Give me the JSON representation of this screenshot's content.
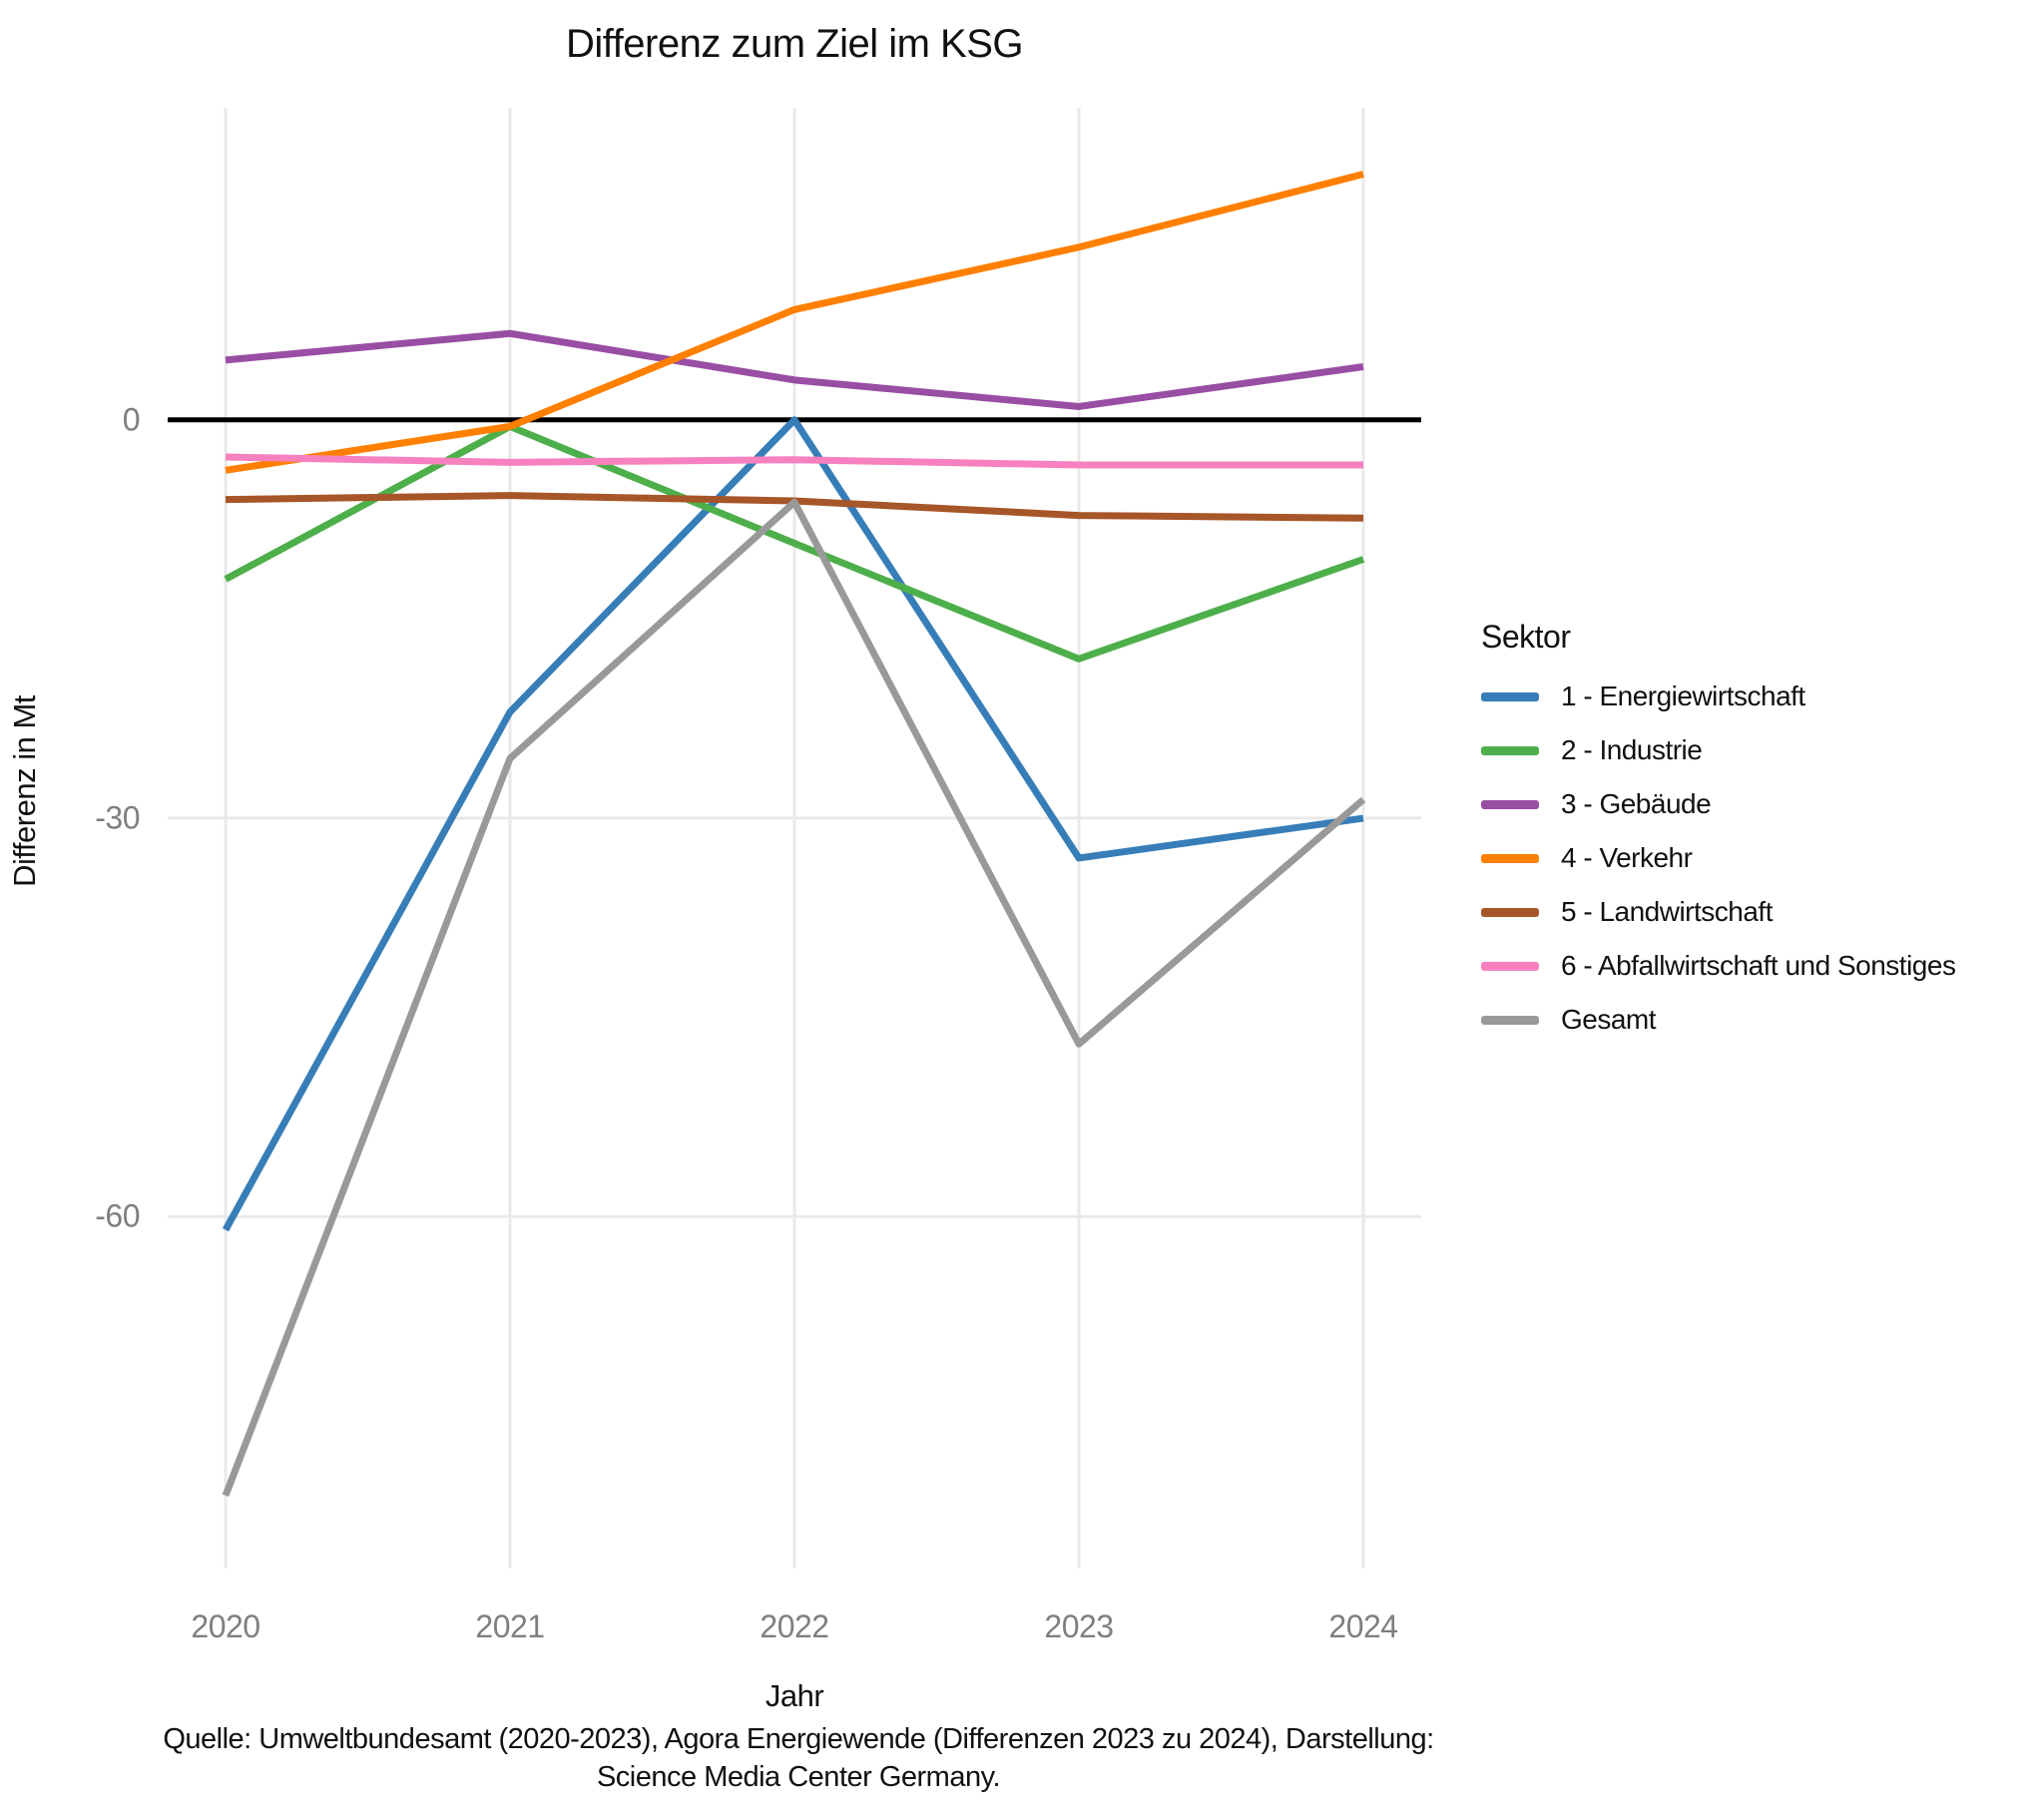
{
  "caption": {
    "line1": "Quelle: Umweltbundesamt (2020-2023), Agora Energiewende (Differenzen 2023 zu 2024), Darstellung:",
    "line2": "Science Media Center Germany."
  },
  "chart_data": {
    "type": "line",
    "title": "Differenz zum Ziel im KSG",
    "xlabel": "Jahr",
    "ylabel": "Differenz in Mt",
    "legend_title": "Sektor",
    "legend_position": "right",
    "grid": true,
    "x": [
      2020,
      2021,
      2022,
      2023,
      2024
    ],
    "y_ticks": [
      0,
      -30,
      -60
    ],
    "ylim": [
      -86.5,
      23.5
    ],
    "zero_line_color": "#000000",
    "gridline_color": "#e9e9e9",
    "tick_label_color": "#7f7f7f",
    "series": [
      {
        "name": "1 - Energiewirtschaft",
        "color": "#377EB8",
        "values": [
          -61,
          -22,
          0,
          -33,
          -30
        ]
      },
      {
        "name": "2 - Industrie",
        "color": "#4DAF4A",
        "values": [
          -12,
          -0.5,
          -9.3,
          -18,
          -10.5
        ]
      },
      {
        "name": "3 - Gebäude",
        "color": "#984EA3",
        "values": [
          4.5,
          6.5,
          3,
          1,
          4
        ]
      },
      {
        "name": "4 - Verkehr",
        "color": "#FF7F00",
        "values": [
          -3.8,
          -0.5,
          8.3,
          13,
          18.5
        ]
      },
      {
        "name": "5 - Landwirtschaft",
        "color": "#A65628",
        "values": [
          -6,
          -5.7,
          -6.1,
          -7.2,
          -7.4
        ]
      },
      {
        "name": "6 - Abfallwirtschaft und Sonstiges",
        "color": "#F781BF",
        "values": [
          -2.8,
          -3.2,
          -3,
          -3.4,
          -3.4
        ]
      },
      {
        "name": "Gesamt",
        "color": "#999999",
        "values": [
          -81,
          -25.5,
          -6.2,
          -47,
          -28.6
        ]
      }
    ]
  }
}
